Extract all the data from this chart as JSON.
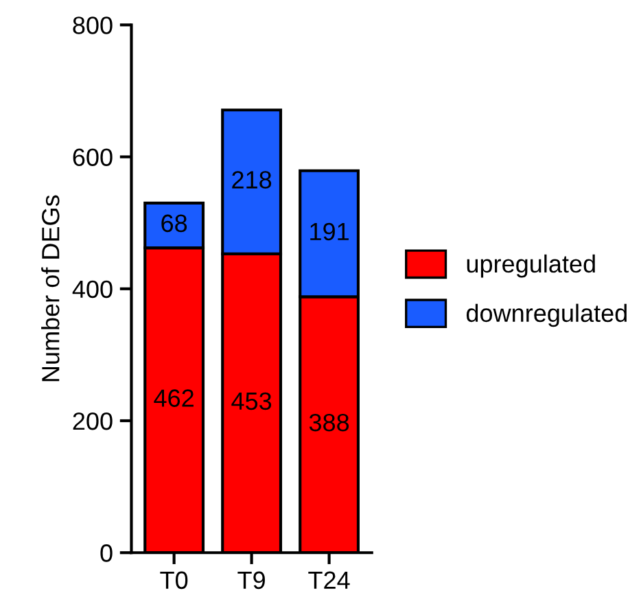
{
  "chart_data": {
    "type": "bar",
    "stacked": true,
    "ylabel": "Number of DEGs",
    "categories": [
      "T0",
      "T9",
      "T24"
    ],
    "series": [
      {
        "name": "upregulated",
        "color": "#ff0000",
        "values": [
          462,
          453,
          388
        ]
      },
      {
        "name": "downregulated",
        "color": "#1a5cff",
        "values": [
          68,
          218,
          191
        ]
      }
    ],
    "ylim": [
      0,
      800
    ],
    "yticks": [
      0,
      200,
      400,
      600,
      800
    ],
    "grid": false,
    "legend": "right",
    "data_labels": true
  }
}
